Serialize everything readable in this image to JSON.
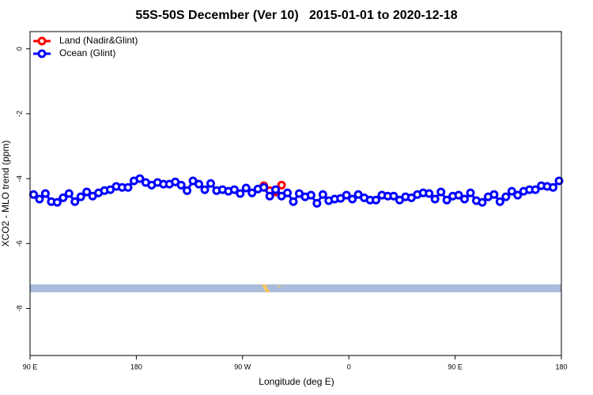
{
  "chart_data": {
    "type": "line",
    "title": "55S-50S December (Ver 10)   2015-01-01 to 2020-12-18",
    "xlabel": "Longitude (deg E)",
    "ylabel": "XCO2 - MLO trend (ppm)",
    "xlim": [
      90,
      540
    ],
    "ylim": [
      -9.45,
      0.53
    ],
    "xticks": [
      {
        "value": 90,
        "label": "90 E"
      },
      {
        "value": 180,
        "label": "180"
      },
      {
        "value": 270,
        "label": "90 W"
      },
      {
        "value": 360,
        "label": "0"
      },
      {
        "value": 450,
        "label": "90 E"
      },
      {
        "value": 540,
        "label": "180"
      }
    ],
    "yticks": [
      0,
      -2,
      -4,
      -6,
      -8
    ],
    "legend": "top-left",
    "series": [
      {
        "name": "Land (Nadir&Glint)",
        "color": "#ff0000",
        "x": [
          288,
          293,
          298,
          303
        ],
        "values": [
          -4.22,
          -4.37,
          -4.41,
          -4.2
        ]
      },
      {
        "name": "Ocean (Glint)",
        "color": "#0000ff",
        "x": [
          93,
          98,
          103,
          108,
          113,
          118,
          123,
          128,
          133,
          138,
          143,
          148,
          153,
          158,
          163,
          168,
          173,
          178,
          183,
          188,
          193,
          198,
          203,
          208,
          213,
          218,
          223,
          228,
          233,
          238,
          243,
          248,
          253,
          258,
          263,
          268,
          273,
          278,
          283,
          288,
          293,
          298,
          303,
          308,
          313,
          318,
          323,
          328,
          333,
          338,
          343,
          348,
          353,
          358,
          363,
          368,
          373,
          378,
          383,
          388,
          393,
          398,
          403,
          408,
          413,
          418,
          423,
          428,
          433,
          438,
          443,
          448,
          453,
          458,
          463,
          468,
          473,
          478,
          483,
          488,
          493,
          498,
          503,
          508,
          513,
          518,
          523,
          528,
          533,
          538
        ],
        "values": [
          -4.49,
          -4.63,
          -4.46,
          -4.71,
          -4.73,
          -4.59,
          -4.46,
          -4.71,
          -4.56,
          -4.41,
          -4.54,
          -4.44,
          -4.37,
          -4.34,
          -4.24,
          -4.27,
          -4.27,
          -4.07,
          -4.0,
          -4.12,
          -4.2,
          -4.12,
          -4.17,
          -4.17,
          -4.1,
          -4.2,
          -4.37,
          -4.07,
          -4.17,
          -4.34,
          -4.15,
          -4.37,
          -4.34,
          -4.39,
          -4.34,
          -4.46,
          -4.29,
          -4.44,
          -4.32,
          -4.27,
          -4.54,
          -4.34,
          -4.54,
          -4.44,
          -4.71,
          -4.46,
          -4.56,
          -4.51,
          -4.76,
          -4.49,
          -4.68,
          -4.63,
          -4.61,
          -4.51,
          -4.63,
          -4.49,
          -4.59,
          -4.66,
          -4.66,
          -4.51,
          -4.54,
          -4.54,
          -4.66,
          -4.56,
          -4.59,
          -4.49,
          -4.44,
          -4.46,
          -4.63,
          -4.41,
          -4.66,
          -4.54,
          -4.51,
          -4.63,
          -4.44,
          -4.68,
          -4.73,
          -4.56,
          -4.49,
          -4.71,
          -4.56,
          -4.39,
          -4.51,
          -4.39,
          -4.34,
          -4.34,
          -4.22,
          -4.24,
          -4.27,
          -4.07
        ]
      }
    ]
  }
}
